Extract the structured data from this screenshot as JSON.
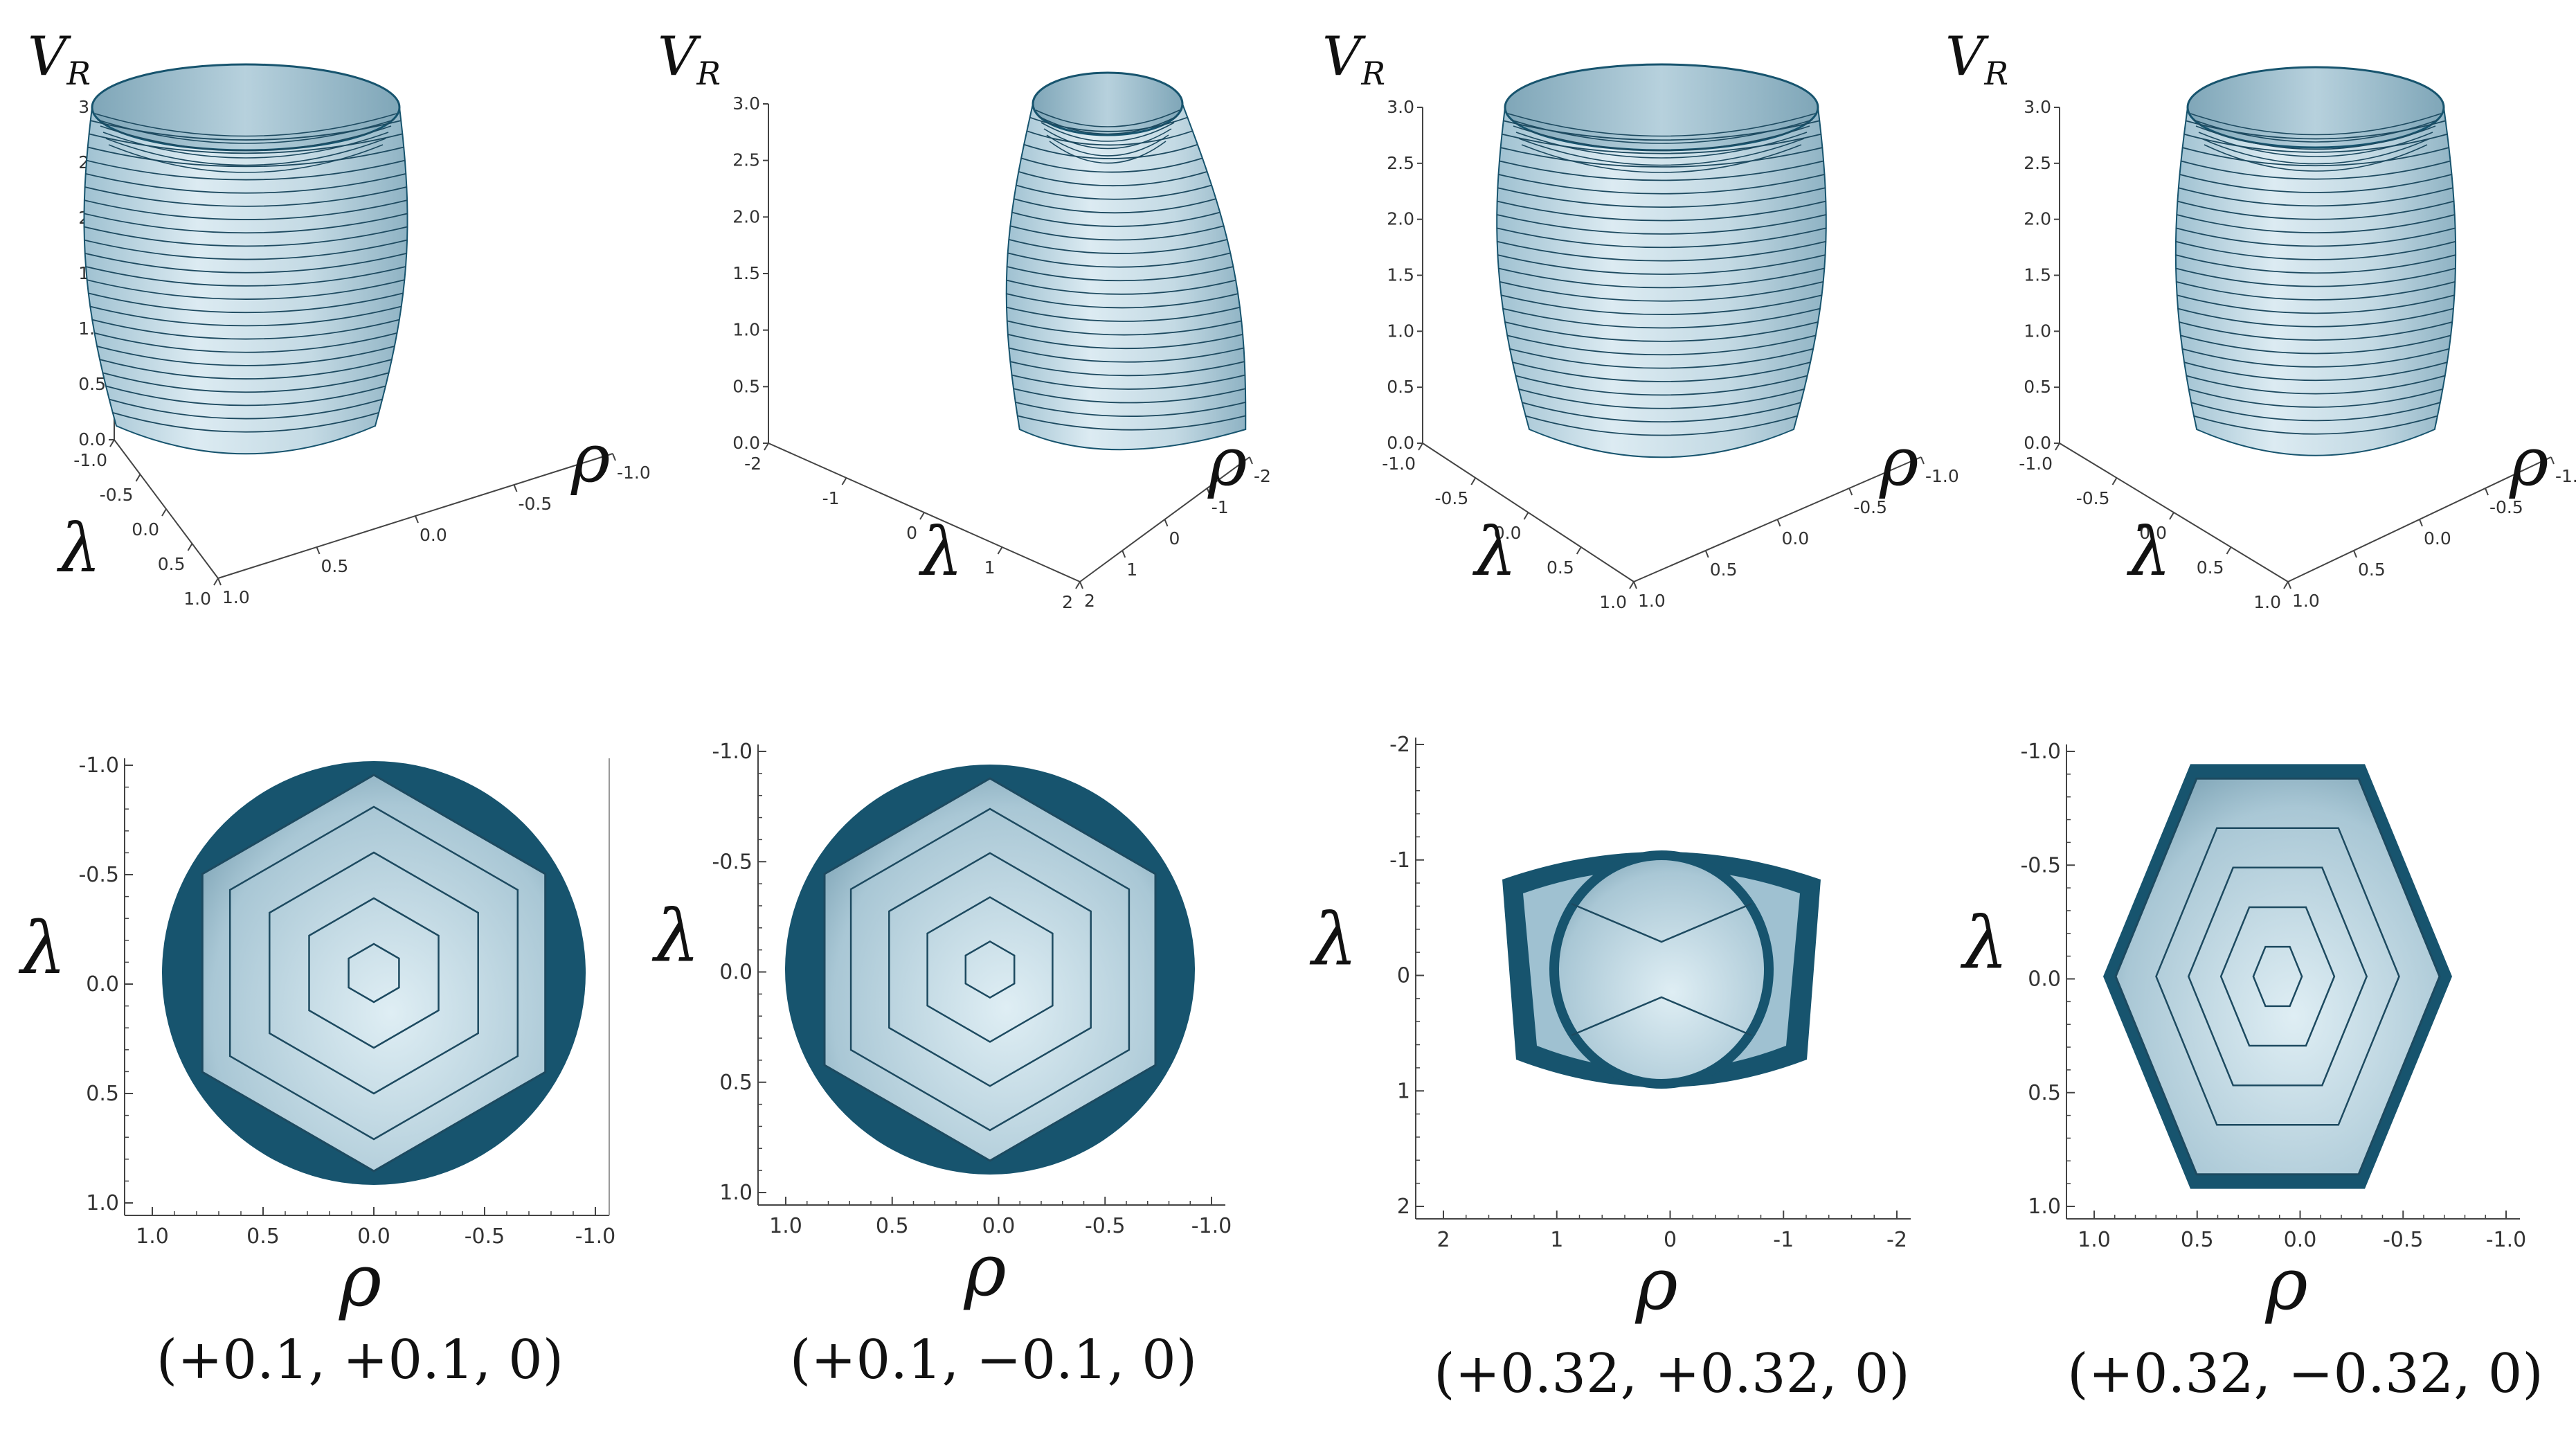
{
  "axis_labels": {
    "vr_main": "V",
    "vr_sub": "R",
    "lambda": "λ",
    "rho": "ρ"
  },
  "ticks": {
    "unit": [
      "-1.0",
      "-0.5",
      "0.0",
      "0.5",
      "1.0"
    ],
    "unit_rev": [
      "1.0",
      "0.5",
      "0.0",
      "-0.5",
      "-1.0"
    ],
    "wide": [
      "-2",
      "-1",
      "0",
      "1",
      "2"
    ],
    "wide_rev": [
      "2",
      "1",
      "0",
      "-1",
      "-2"
    ],
    "vr": [
      "0.0",
      "0.5",
      "1.0",
      "1.5",
      "2.0",
      "2.5",
      "3.0"
    ]
  },
  "panels": [
    {
      "caption": "(+0.1, +0.1, 0)"
    },
    {
      "caption": "(+0.1, −0.1, 0)"
    },
    {
      "caption": "(+0.32, +0.32, 0)"
    },
    {
      "caption": "(+0.32, −0.32, 0)"
    }
  ],
  "colors": {
    "surface_light": "#dcebf2",
    "surface_mid": "#b9d3df",
    "surface_dark": "#8fb3c4",
    "edge": "#17546e",
    "contour": "#1d4a60",
    "axis": "#444444"
  }
}
